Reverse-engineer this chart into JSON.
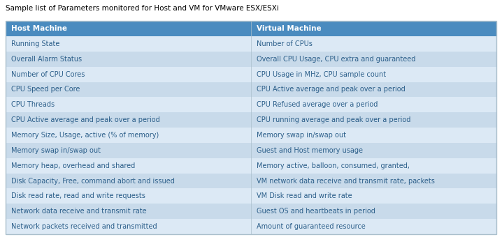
{
  "title": "Sample list of Parameters monitored for Host and VM for VMware ESX/ESXi",
  "col_headers": [
    "Host Machine",
    "Virtual Machine"
  ],
  "rows": [
    [
      "Running State",
      "Number of CPUs"
    ],
    [
      "Overall Alarm Status",
      "Overall CPU Usage, CPU extra and guaranteed"
    ],
    [
      "Number of CPU Cores",
      "CPU Usage in MHz, CPU sample count"
    ],
    [
      "CPU Speed per Core",
      "CPU Active average and peak over a period"
    ],
    [
      "CPU Threads",
      "CPU Refused average over a period"
    ],
    [
      "CPU Active average and peak over a period",
      "CPU running average and peak over a period"
    ],
    [
      "Memory Size, Usage, active (% of memory)",
      "Memory swap in/swap out"
    ],
    [
      "Memory swap in/swap out",
      "Guest and Host memory usage"
    ],
    [
      "Memory heap, overhead and shared",
      "Memory active, balloon, consumed, granted,"
    ],
    [
      "Disk Capacity, Free, command abort and issued",
      "VM network data receive and transmit rate, packets"
    ],
    [
      "Disk read rate, read and write requests",
      "VM Disk read and write rate"
    ],
    [
      "Network data receive and transmit rate",
      "Guest OS and heartbeats in period"
    ],
    [
      "Network packets received and transmitted",
      "Amount of guaranteed resource"
    ]
  ],
  "header_bg": "#4a8bbf",
  "header_text_color": "#ffffff",
  "row_colors": [
    "#dce9f5",
    "#c8daea"
  ],
  "row_text_color": "#2c5f8a",
  "title_color": "#000000",
  "title_fontsize": 7.5,
  "header_fontsize": 7.5,
  "cell_fontsize": 7.0,
  "col_split": 0.5,
  "outer_border_color": "#aabfcc",
  "fig_width": 7.18,
  "fig_height": 3.4,
  "dpi": 100
}
